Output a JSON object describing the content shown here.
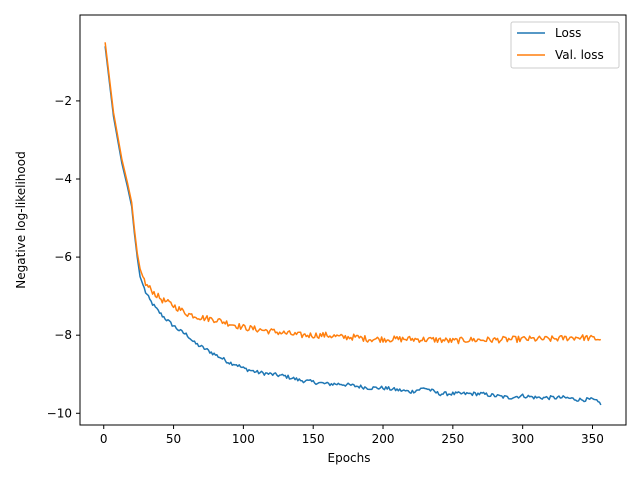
{
  "chart_data": {
    "type": "line",
    "title": "",
    "xlabel": "Epochs",
    "ylabel": "Negative log-likelihood",
    "xlim": [
      -17,
      374
    ],
    "ylim": [
      -10.3,
      0.2
    ],
    "xticks": [
      0,
      50,
      100,
      150,
      200,
      250,
      300,
      350
    ],
    "yticks": [
      -10,
      -8,
      -6,
      -4,
      -2
    ],
    "ytick_labels": [
      "−10",
      "−8",
      "−6",
      "−4",
      "−2"
    ],
    "grid": false,
    "legend_position": "top-right",
    "series": [
      {
        "name": "Loss",
        "color": "#1f77b4",
        "points": [
          [
            1,
            -0.6
          ],
          [
            3,
            -1.2
          ],
          [
            5,
            -1.8
          ],
          [
            7,
            -2.4
          ],
          [
            10,
            -3.0
          ],
          [
            13,
            -3.6
          ],
          [
            17,
            -4.2
          ],
          [
            20,
            -4.7
          ],
          [
            22,
            -5.4
          ],
          [
            24,
            -6.0
          ],
          [
            26,
            -6.5
          ],
          [
            28,
            -6.7
          ],
          [
            30,
            -6.9
          ],
          [
            33,
            -7.1
          ],
          [
            37,
            -7.3
          ],
          [
            42,
            -7.5
          ],
          [
            48,
            -7.7
          ],
          [
            55,
            -7.9
          ],
          [
            60,
            -8.0
          ],
          [
            65,
            -8.2
          ],
          [
            70,
            -8.3
          ],
          [
            75,
            -8.4
          ],
          [
            80,
            -8.5
          ],
          [
            85,
            -8.6
          ],
          [
            90,
            -8.7
          ],
          [
            95,
            -8.75
          ],
          [
            100,
            -8.85
          ],
          [
            110,
            -8.95
          ],
          [
            120,
            -9.0
          ],
          [
            130,
            -9.05
          ],
          [
            140,
            -9.15
          ],
          [
            150,
            -9.2
          ],
          [
            160,
            -9.25
          ],
          [
            170,
            -9.25
          ],
          [
            180,
            -9.3
          ],
          [
            190,
            -9.35
          ],
          [
            200,
            -9.35
          ],
          [
            210,
            -9.4
          ],
          [
            220,
            -9.45
          ],
          [
            230,
            -9.35
          ],
          [
            240,
            -9.5
          ],
          [
            250,
            -9.5
          ],
          [
            260,
            -9.5
          ],
          [
            270,
            -9.5
          ],
          [
            280,
            -9.55
          ],
          [
            290,
            -9.6
          ],
          [
            300,
            -9.55
          ],
          [
            310,
            -9.6
          ],
          [
            320,
            -9.6
          ],
          [
            330,
            -9.6
          ],
          [
            340,
            -9.65
          ],
          [
            350,
            -9.65
          ],
          [
            356,
            -9.75
          ]
        ],
        "noise": 0.05
      },
      {
        "name": "Val. loss",
        "color": "#ff7f0e",
        "points": [
          [
            1,
            -0.5
          ],
          [
            3,
            -1.1
          ],
          [
            5,
            -1.7
          ],
          [
            7,
            -2.3
          ],
          [
            10,
            -2.9
          ],
          [
            13,
            -3.5
          ],
          [
            17,
            -4.1
          ],
          [
            20,
            -4.6
          ],
          [
            22,
            -5.3
          ],
          [
            24,
            -5.9
          ],
          [
            26,
            -6.3
          ],
          [
            28,
            -6.5
          ],
          [
            30,
            -6.7
          ],
          [
            33,
            -6.8
          ],
          [
            37,
            -6.95
          ],
          [
            42,
            -7.1
          ],
          [
            48,
            -7.2
          ],
          [
            55,
            -7.35
          ],
          [
            60,
            -7.45
          ],
          [
            65,
            -7.5
          ],
          [
            70,
            -7.55
          ],
          [
            80,
            -7.6
          ],
          [
            90,
            -7.7
          ],
          [
            100,
            -7.8
          ],
          [
            110,
            -7.85
          ],
          [
            120,
            -7.9
          ],
          [
            130,
            -7.95
          ],
          [
            140,
            -8.0
          ],
          [
            150,
            -8.0
          ],
          [
            160,
            -8.0
          ],
          [
            170,
            -8.05
          ],
          [
            180,
            -8.05
          ],
          [
            190,
            -8.1
          ],
          [
            200,
            -8.1
          ],
          [
            220,
            -8.1
          ],
          [
            240,
            -8.12
          ],
          [
            250,
            -8.15
          ],
          [
            260,
            -8.12
          ],
          [
            280,
            -8.12
          ],
          [
            300,
            -8.1
          ],
          [
            320,
            -8.1
          ],
          [
            340,
            -8.05
          ],
          [
            356,
            -8.1
          ]
        ],
        "noise": 0.08
      }
    ]
  }
}
